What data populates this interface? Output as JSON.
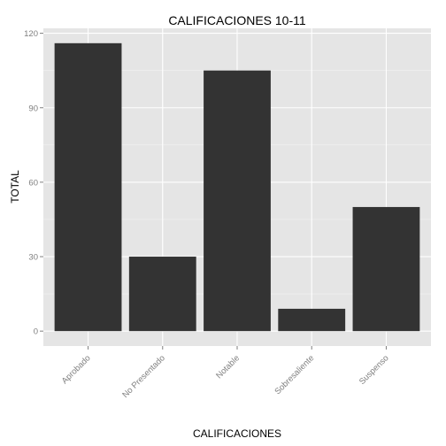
{
  "chart_data": {
    "type": "bar",
    "title": "CALIFICACIONES 10-11",
    "xlabel": "CALIFICACIONES",
    "ylabel": "TOTAL",
    "categories": [
      "Aprobado",
      "No Presentado",
      "Notable",
      "Sobresaliente",
      "Suspenso"
    ],
    "values": [
      116,
      30,
      105,
      9,
      50
    ],
    "ylim": [
      -6,
      122
    ],
    "yticks": [
      0,
      30,
      60,
      90,
      120
    ],
    "grid": true,
    "colors": {
      "panel": "#e5e5e5",
      "bar": "#333333",
      "grid_major": "#ffffff",
      "grid_minor": "#f2f2f2",
      "tick_text": "#7f7f7f"
    }
  }
}
